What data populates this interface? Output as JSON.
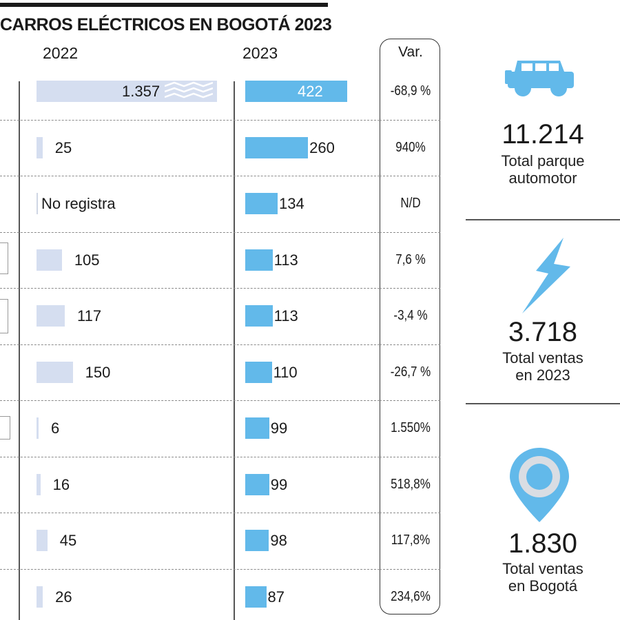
{
  "header": {
    "title": "CARROS ELÉCTRICOS EN BOGOTÁ 2023"
  },
  "columns": {
    "y2022": "2022",
    "y2023": "2023",
    "var": "Var."
  },
  "chart_data": {
    "type": "bar",
    "series": [
      {
        "name": "2022",
        "values": [
          1357,
          25,
          null,
          105,
          117,
          150,
          6,
          16,
          45,
          26
        ]
      },
      {
        "name": "2023",
        "values": [
          422,
          260,
          134,
          113,
          113,
          110,
          99,
          99,
          98,
          87
        ]
      }
    ],
    "labels_2022": [
      "1.357",
      "25",
      "No registra",
      "105",
      "117",
      "150",
      "6",
      "16",
      "45",
      "26"
    ],
    "labels_2023": [
      "422",
      "260",
      "134",
      "113",
      "113",
      "110",
      "99",
      "99",
      "98",
      "87"
    ],
    "variation": [
      "-68,9 %",
      "940%",
      "N/D",
      "7,6 %",
      "-3,4 %",
      "-26,7 %",
      "1.550%",
      "518,8%",
      "117,8%",
      "234,6%"
    ],
    "first_2022_bar_truncated": true
  },
  "stats": [
    {
      "icon": "jeep-icon",
      "value": "11.214",
      "label_line1": "Total parque",
      "label_line2": "automotor"
    },
    {
      "icon": "lightning-icon",
      "value": "3.718",
      "label_line1": "Total ventas",
      "label_line2": "en 2023"
    },
    {
      "icon": "location-pin-icon",
      "value": "1.830",
      "label_line1": "Total ventas",
      "label_line2": "en Bogotá"
    }
  ],
  "colors": {
    "bar_2022": "#d5def0",
    "bar_2023": "#62b9ea",
    "icon": "#62b9ea"
  }
}
